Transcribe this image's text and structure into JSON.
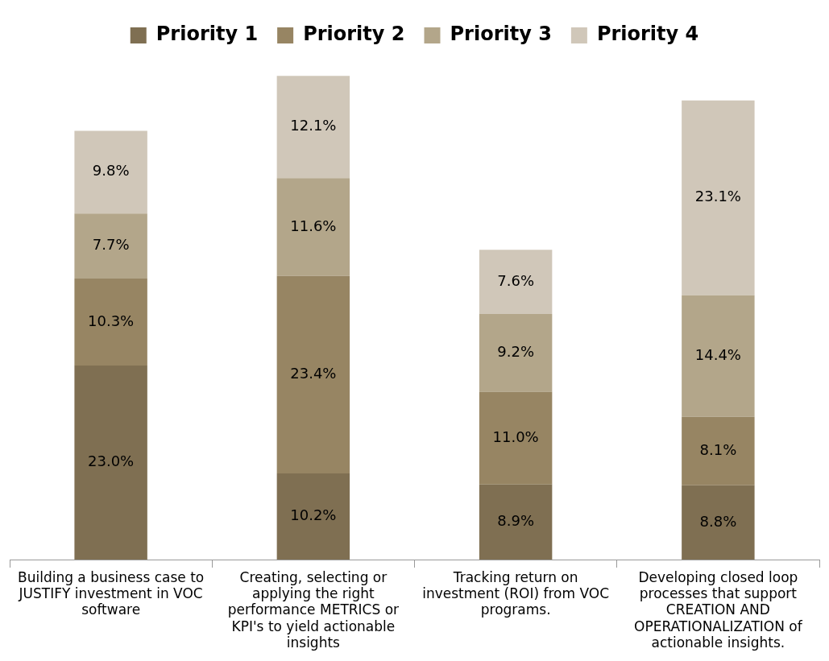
{
  "chart_data": {
    "type": "bar",
    "stacked": true,
    "legend": "top",
    "grid": false,
    "categories": [
      "Building a business case to JUSTIFY investment in VOC software",
      "Creating, selecting or applying the right performance METRICS or KPI's to yield actionable insights",
      "Tracking return on investment (ROI) from VOC programs.",
      "Developing closed loop processes that support CREATION AND OPERATIONALIZATION of actionable insights."
    ],
    "series": [
      {
        "name": "Priority 1",
        "color": "#7f6f52",
        "values": [
          23.0,
          10.2,
          8.9,
          8.8
        ],
        "value_labels": [
          "23.0%",
          "10.2%",
          "8.9%",
          "8.8%"
        ]
      },
      {
        "name": "Priority 2",
        "color": "#978563",
        "values": [
          10.3,
          23.4,
          11.0,
          8.1
        ],
        "value_labels": [
          "10.3%",
          "23.4%",
          "11.0%",
          "8.1%"
        ]
      },
      {
        "name": "Priority 3",
        "color": "#b3a68a",
        "values": [
          7.7,
          11.6,
          9.2,
          14.4
        ],
        "value_labels": [
          "7.7%",
          "11.6%",
          "9.2%",
          "14.4%"
        ]
      },
      {
        "name": "Priority 4",
        "color": "#d0c7b9",
        "values": [
          9.8,
          12.1,
          7.6,
          23.1
        ],
        "value_labels": [
          "9.8%",
          "12.1%",
          "7.6%",
          "23.1%"
        ]
      }
    ]
  }
}
